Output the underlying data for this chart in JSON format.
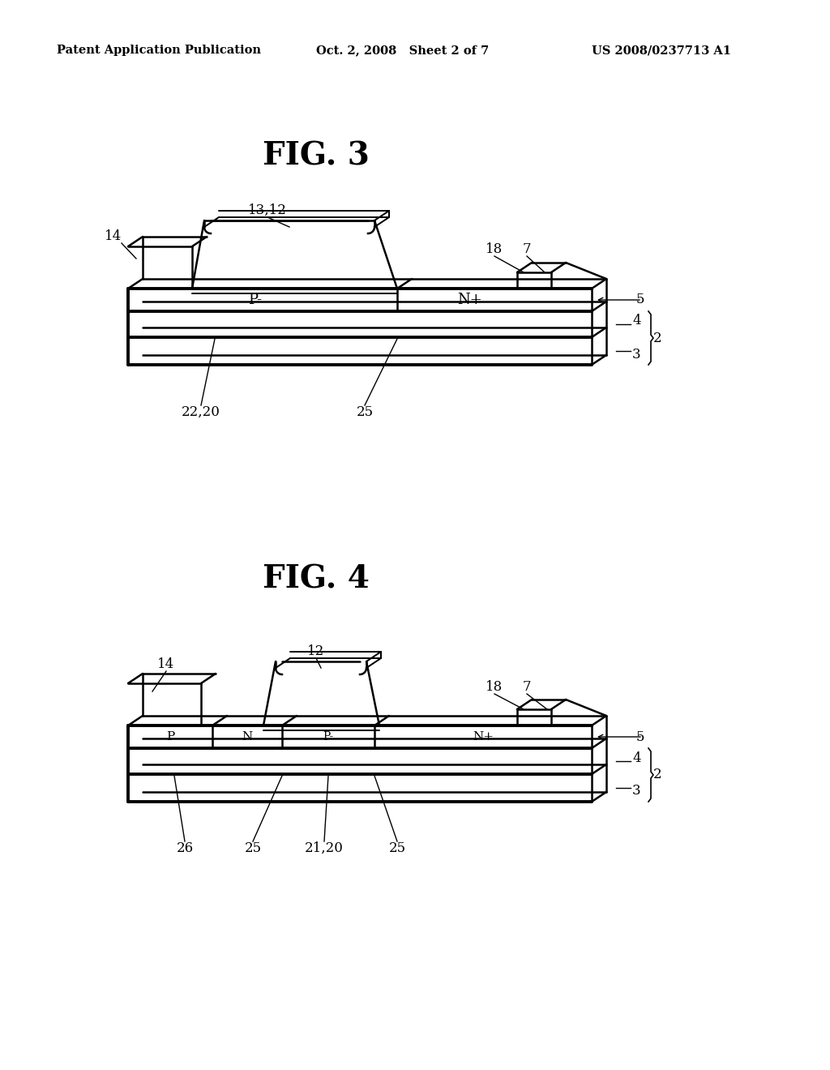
{
  "bg_color": "#ffffff",
  "fig_width": 10.24,
  "fig_height": 13.2,
  "header_left": "Patent Application Publication",
  "header_center": "Oct. 2, 2008   Sheet 2 of 7",
  "header_right": "US 2008/0237713 A1",
  "fig3_title": "FIG. 3",
  "fig4_title": "FIG. 4",
  "text_color": "#000000",
  "line_color": "#000000"
}
